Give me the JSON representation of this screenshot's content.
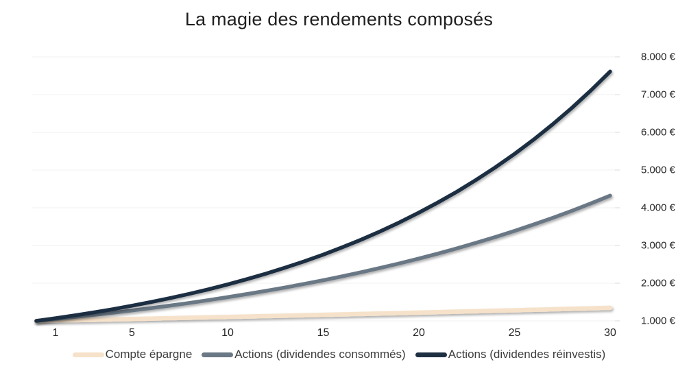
{
  "title": "La magie des rendements composés",
  "colors": {
    "background": "#ffffff",
    "gridline": "#f2f2f2",
    "axis_tick": "#d9d9d9",
    "title_text": "#1f1f1f",
    "axis_text": "#262626",
    "legend_text": "#3d3d3d"
  },
  "chart_data": {
    "type": "line",
    "title": "La magie des rendements composés",
    "xlabel": "",
    "ylabel": "",
    "xlim": [
      0,
      30
    ],
    "ylim": [
      1000,
      8000
    ],
    "grid": true,
    "legend_position": "bottom",
    "x": [
      0,
      1,
      2,
      3,
      4,
      5,
      6,
      7,
      8,
      9,
      10,
      11,
      12,
      13,
      14,
      15,
      16,
      17,
      18,
      19,
      20,
      21,
      22,
      23,
      24,
      25,
      26,
      27,
      28,
      29,
      30
    ],
    "x_ticks": [
      {
        "value": 1,
        "label": "1"
      },
      {
        "value": 5,
        "label": "5"
      },
      {
        "value": 10,
        "label": "10"
      },
      {
        "value": 15,
        "label": "15"
      },
      {
        "value": 20,
        "label": "20"
      },
      {
        "value": 25,
        "label": "25"
      },
      {
        "value": 30,
        "label": "30"
      }
    ],
    "y_ticks": [
      {
        "value": 1000,
        "label": "1.000 €"
      },
      {
        "value": 2000,
        "label": "2.000 €"
      },
      {
        "value": 3000,
        "label": "3.000 €"
      },
      {
        "value": 4000,
        "label": "4.000 €"
      },
      {
        "value": 5000,
        "label": "5.000 €"
      },
      {
        "value": 6000,
        "label": "6.000 €"
      },
      {
        "value": 7000,
        "label": "7.000 €"
      },
      {
        "value": 8000,
        "label": "8.000 €"
      }
    ],
    "series": [
      {
        "name": "Compte épargne",
        "color": "#F6E2CA",
        "line_width": 6.5,
        "values": [
          1000,
          1010,
          1020,
          1030,
          1041,
          1051,
          1062,
          1072,
          1083,
          1094,
          1105,
          1116,
          1127,
          1138,
          1149,
          1161,
          1173,
          1184,
          1196,
          1208,
          1220,
          1232,
          1245,
          1257,
          1270,
          1282,
          1295,
          1308,
          1321,
          1335,
          1348
        ]
      },
      {
        "name": "Actions (dividendes consommés)",
        "color": "#6B7885",
        "line_width": 5.5,
        "values": [
          1000,
          1050,
          1103,
          1158,
          1216,
          1276,
          1340,
          1407,
          1477,
          1551,
          1629,
          1710,
          1796,
          1886,
          1980,
          2079,
          2183,
          2292,
          2407,
          2527,
          2653,
          2786,
          2925,
          3072,
          3225,
          3386,
          3556,
          3733,
          3920,
          4116,
          4322
        ]
      },
      {
        "name": "Actions (dividendes réinvestis)",
        "color": "#1E2F42",
        "line_width": 5.5,
        "values": [
          1000,
          1070,
          1145,
          1225,
          1311,
          1403,
          1501,
          1606,
          1718,
          1838,
          1967,
          2105,
          2252,
          2410,
          2579,
          2759,
          2952,
          3159,
          3380,
          3617,
          3870,
          4141,
          4430,
          4741,
          5072,
          5427,
          5807,
          6214,
          6649,
          7114,
          7612
        ]
      }
    ]
  }
}
